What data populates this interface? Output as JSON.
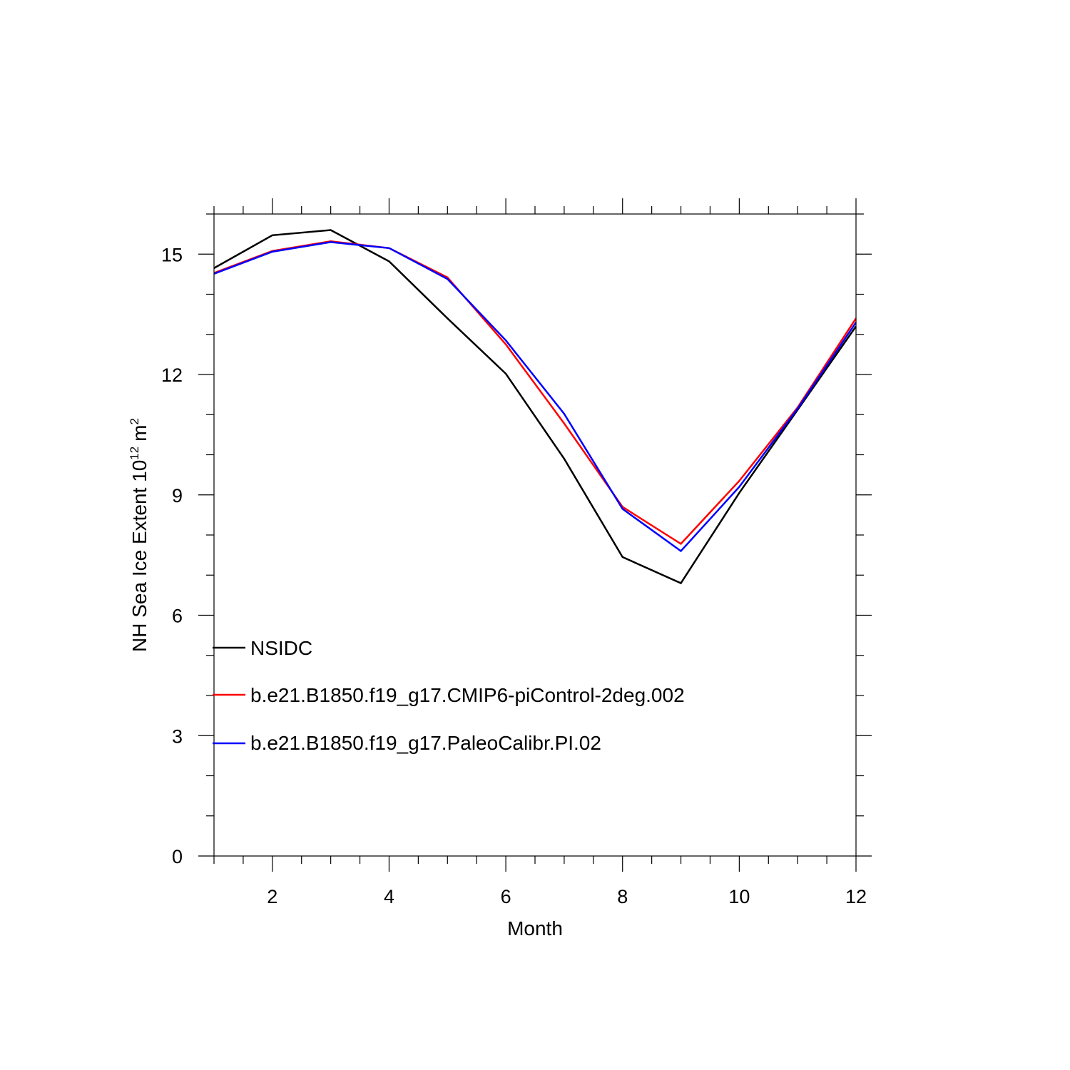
{
  "chart_data": {
    "type": "line",
    "title": "",
    "xlabel": "Month",
    "ylabel_main": "NH Sea Ice Extent 10",
    "ylabel_exp": "12",
    "ylabel_unit": "m",
    "ylabel_unit_exp": "2",
    "xlim": [
      1,
      12
    ],
    "ylim": [
      0,
      16
    ],
    "x_major_ticks": [
      2,
      4,
      6,
      8,
      10,
      12
    ],
    "x_minor_step": 0.5,
    "y_major_ticks": [
      0,
      3,
      6,
      9,
      12,
      15
    ],
    "y_minor_step": 1,
    "x_tick_labels": [
      "2",
      "4",
      "6",
      "8",
      "10",
      "12"
    ],
    "y_tick_labels": [
      "0",
      "3",
      "6",
      "9",
      "12",
      "15"
    ],
    "grid": false,
    "legend_position": "lower-left",
    "x": [
      1,
      2,
      3,
      4,
      5,
      6,
      7,
      8,
      9,
      10,
      11,
      12
    ],
    "series": [
      {
        "name": "NSIDC",
        "color": "#000000",
        "values": [
          14.65,
          15.47,
          15.6,
          14.82,
          13.4,
          12.02,
          9.9,
          7.45,
          6.8,
          9.05,
          11.12,
          13.2
        ]
      },
      {
        "name": "b.e21.B1850.f19_g17.CMIP6-piControl-2deg.002",
        "color": "#ff0000",
        "values": [
          14.53,
          15.08,
          15.32,
          15.15,
          14.42,
          12.75,
          10.78,
          8.7,
          7.78,
          9.35,
          11.18,
          13.4
        ]
      },
      {
        "name": "b.e21.B1850.f19_g17.PaleoCalibr.PI.02",
        "color": "#0000ff",
        "values": [
          14.51,
          15.06,
          15.3,
          15.15,
          14.38,
          12.85,
          11.02,
          8.65,
          7.6,
          9.2,
          11.15,
          13.3
        ]
      }
    ]
  }
}
